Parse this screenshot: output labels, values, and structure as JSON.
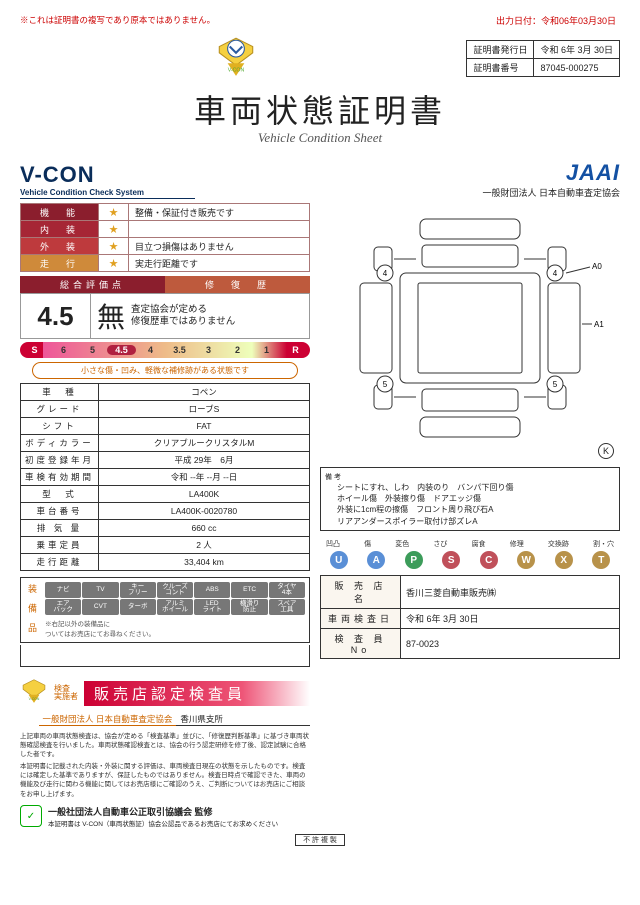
{
  "notice": "※これは証明書の複写であり原本ではありません。",
  "output_date": "出力日付：令和06年03月30日",
  "cert_info": {
    "issue_label": "証明書発行日",
    "issue_value": "令和 6年 3月 30日",
    "num_label": "証明書番号",
    "num_value": "87045-000275"
  },
  "title": "車両状態証明書",
  "subtitle": "Vehicle Condition Sheet",
  "vcon": {
    "logo": "V-CON",
    "sub": "Vehicle Condition Check System"
  },
  "jaai": {
    "logo": "JAAI",
    "sub": "一般財団法人 日本自動車査定協会"
  },
  "ratings": [
    {
      "label": "機　能",
      "star": "★",
      "value": "整備・保証付き販売です",
      "cls": "func-lbl"
    },
    {
      "label": "内　装",
      "star": "★",
      "value": "",
      "cls": "inner-lbl"
    },
    {
      "label": "外　装",
      "star": "★",
      "value": "目立つ損傷はありません",
      "cls": "outer-lbl"
    },
    {
      "label": "走　行",
      "star": "★",
      "value": "実走行距離です",
      "cls": "run-lbl"
    }
  ],
  "score_head": {
    "a": "総合評価点",
    "b": "修　復　歴"
  },
  "score": {
    "val": "4.5",
    "kanji": "無",
    "txt": "査定協会が定める\n修復歴車ではありません"
  },
  "scale": [
    "S",
    "6",
    "5",
    "4.5",
    "4",
    "3.5",
    "3",
    "2",
    "1",
    "R"
  ],
  "scale_note": "小さな傷・凹み、軽微な補修跡がある状態です",
  "spec": [
    {
      "l": "車　種",
      "v": "コペン"
    },
    {
      "l": "グレード",
      "v": "ローブS"
    },
    {
      "l": "シフト",
      "v": "FAT"
    },
    {
      "l": "ボディカラー",
      "v": "クリアブルークリスタルM"
    },
    {
      "l": "初度登録年月",
      "v": "平成 29年　6月"
    },
    {
      "l": "車検有効期間",
      "v": "令和 --年 --月 --日"
    },
    {
      "l": "型　式",
      "v": "LA400K"
    },
    {
      "l": "車台番号",
      "v": "LA400K-0020780"
    },
    {
      "l": "排 気 量",
      "v": "660 cc"
    },
    {
      "l": "乗車定員",
      "v": "2 人"
    },
    {
      "l": "走行距離",
      "v": "33,404 km"
    }
  ],
  "equip_label": "装 備 品",
  "equip": [
    [
      "ナビ",
      "TV",
      "キー\nフリー",
      "クルーズ\nコント",
      "ABS",
      "ETC",
      "タイヤ\n4本"
    ],
    [
      "エア\nバック",
      "CVT",
      "ターボ",
      "アルミ\nホイール",
      "LED\nライト",
      "横滑り\n防止",
      "スペア\n工具"
    ]
  ],
  "equip_note": "※右記以外の装備品に\nついてはお売店にてお尋ねください。",
  "inspector": {
    "pre": "検査\n実施者",
    "banner": "販売店認定検査員"
  },
  "branch": {
    "assn": "一般財団法人 日本自動車査定協会",
    "branch": "香川県支所"
  },
  "fine1": "上記車両の車両状態検査は、協会が定める「検査基準」並びに、「修復歴判断基準」に基づき車両状態確認検査を行いました。車両状態確認検査とは、協会の行う認定研修を修了後、認定試験に合格した者です。",
  "fine2": "本証明書に記載された内装・外装に関する評価は、車両検査日現在の状態を示したものです。検査には確定した基準でありますが、保証したものではありません。検査日時点で確認できた、車両の機能及び走行に関わる機能に関してはお売店様にご確認のうえ、ご判断についてはお売店にご相談をお申し上げます。",
  "council": {
    "name": "一般社団法人自動車公正取引協議会 監修",
    "note": "本証明書は V-CON（車両状態証）協会公認品であるお売店にてお求めください"
  },
  "remarks_label": "備 考",
  "remarks": "シートにすれ、しわ　内装のり　バンパ下回り傷\nホイール傷　外装擦り傷　ドアエッジ傷\n外装に1cm程の擦傷　フロント周り飛び石A\nリアアンダースポイラー取付け部ズレA",
  "legend_labels": [
    "凹凸",
    "傷",
    "変色",
    "さび",
    "腐食",
    "修理",
    "交換跡",
    "割・穴"
  ],
  "legend_codes": [
    {
      "t": "U",
      "c": "#5a8fd6"
    },
    {
      "t": "A",
      "c": "#5a8fd6"
    },
    {
      "t": "P",
      "c": "#3c9c5a"
    },
    {
      "t": "S",
      "c": "#c0505a"
    },
    {
      "t": "C",
      "c": "#c0505a"
    },
    {
      "t": "W",
      "c": "#b8924a"
    },
    {
      "t": "X",
      "c": "#b8924a"
    },
    {
      "t": "T",
      "c": "#b8924a"
    }
  ],
  "dealer": [
    {
      "l": "販 売 店 名",
      "v": "香川三菱自動車販売㈱"
    },
    {
      "l": "車両検査日",
      "v": "令和 6年 3月 30日"
    },
    {
      "l": "検 査 員 No",
      "v": "87-0023"
    }
  ],
  "diagram_marks": [
    "4",
    "4",
    "5",
    "5"
  ],
  "diagram_labels": [
    "A0",
    "A1"
  ],
  "noprint": "不 許 複 製",
  "colors": {
    "brand_red": "#8b1e2d",
    "jaai_blue": "#1451a3"
  }
}
